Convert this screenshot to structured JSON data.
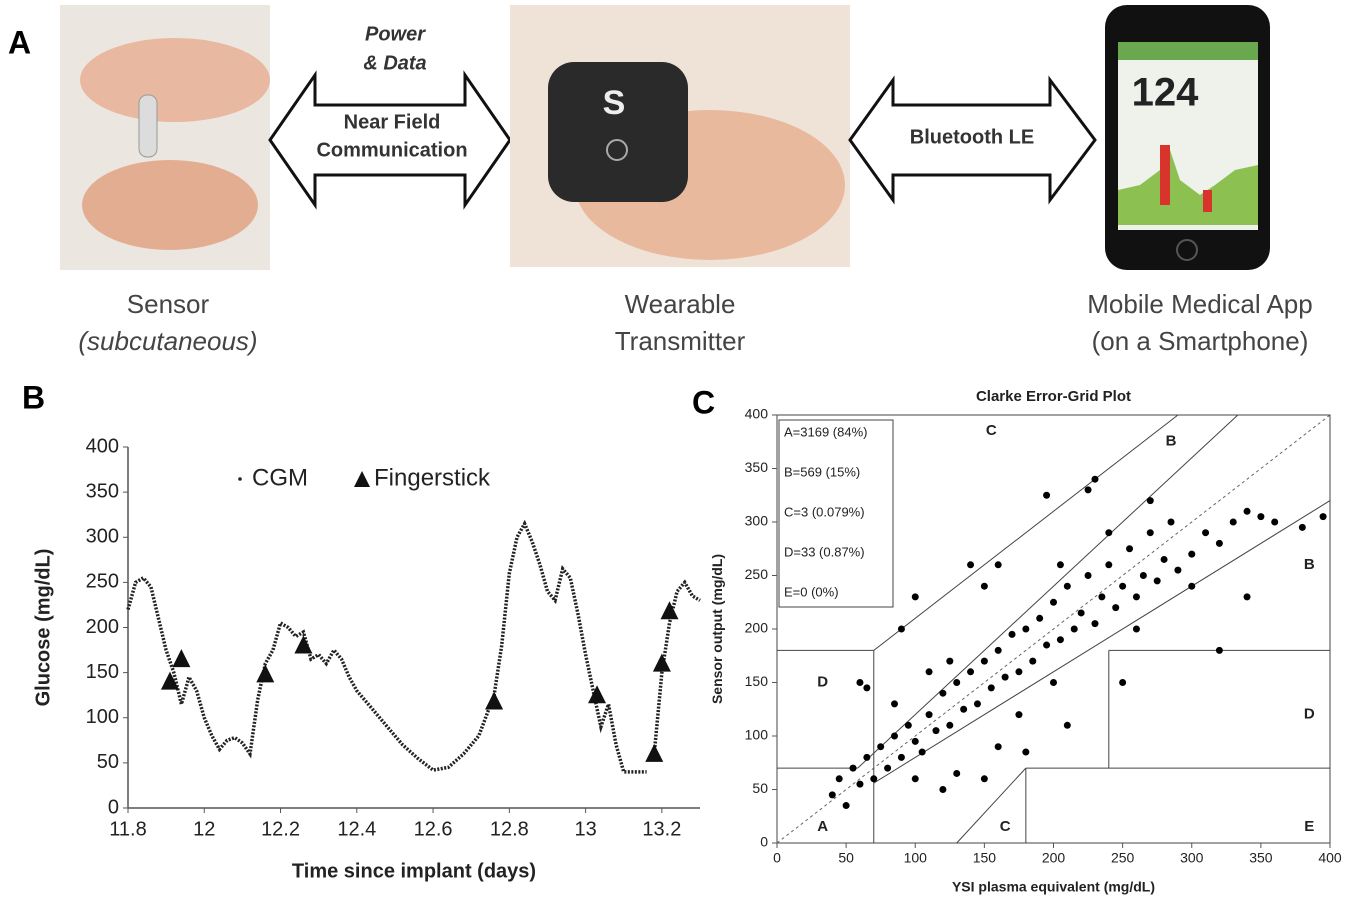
{
  "panel_labels": [
    "A",
    "B",
    "C"
  ],
  "panel_a": {
    "nfc_above": [
      "Power",
      "& Data"
    ],
    "nfc_arrow": [
      "Near Field",
      "Communication"
    ],
    "ble_arrow": "Bluetooth LE",
    "captions": [
      [
        "Sensor",
        "(subcutaneous)"
      ],
      [
        "Wearable",
        "Transmitter"
      ],
      [
        "Mobile Medical App",
        "(on a Smartphone)"
      ]
    ],
    "phone_reading": "124",
    "transmitter_logo": "S"
  },
  "chart_data": [
    {
      "type": "line",
      "xlabel": "Time since implant (days)",
      "ylabel": "Glucose (mg/dL)",
      "xlim": [
        11.8,
        13.3
      ],
      "ylim": [
        0,
        400
      ],
      "xticks": [
        11.8,
        12,
        12.2,
        12.4,
        12.6,
        12.8,
        13,
        13.2
      ],
      "yticks": [
        0,
        50,
        100,
        150,
        200,
        250,
        300,
        350,
        400
      ],
      "series": [
        {
          "name": "CGM",
          "color": "#222222",
          "marker": "dot",
          "x": [
            11.8,
            11.82,
            11.84,
            11.86,
            11.88,
            11.9,
            11.92,
            11.94,
            11.96,
            11.98,
            12.0,
            12.02,
            12.04,
            12.06,
            12.08,
            12.1,
            12.12,
            12.14,
            12.16,
            12.18,
            12.2,
            12.22,
            12.24,
            12.26,
            12.28,
            12.3,
            12.32,
            12.34,
            12.36,
            12.38,
            12.4,
            12.44,
            12.48,
            12.52,
            12.56,
            12.6,
            12.64,
            12.68,
            12.72,
            12.76,
            12.78,
            12.8,
            12.82,
            12.84,
            12.86,
            12.88,
            12.9,
            12.92,
            12.94,
            12.96,
            12.98,
            13.0,
            13.02,
            13.04,
            13.06,
            13.08,
            13.1,
            13.14,
            13.16,
            13.17,
            13.18,
            13.2,
            13.22,
            13.24,
            13.26,
            13.28,
            13.3
          ],
          "values": [
            220,
            250,
            255,
            245,
            210,
            175,
            150,
            115,
            145,
            130,
            100,
            80,
            65,
            75,
            78,
            72,
            60,
            120,
            160,
            175,
            205,
            200,
            190,
            195,
            165,
            170,
            160,
            175,
            165,
            145,
            130,
            110,
            90,
            70,
            55,
            42,
            45,
            60,
            80,
            125,
            180,
            260,
            300,
            315,
            295,
            270,
            240,
            230,
            265,
            255,
            215,
            170,
            130,
            90,
            115,
            70,
            40,
            40,
            40,
            null,
            60,
            150,
            205,
            240,
            250,
            235,
            230
          ]
        },
        {
          "name": "Fingerstick",
          "color": "#111111",
          "marker": "triangle",
          "x": [
            11.91,
            11.94,
            12.16,
            12.26,
            12.76,
            13.03,
            13.18,
            13.2,
            13.22
          ],
          "values": [
            140,
            165,
            148,
            180,
            118,
            125,
            60,
            160,
            218
          ]
        }
      ]
    },
    {
      "type": "scatter",
      "title": "Clarke Error-Grid Plot",
      "xlabel": "YSI plasma equivalent (mg/dL)",
      "ylabel": "Sensor output (mg/dL)",
      "xlim": [
        0,
        400
      ],
      "ylim": [
        0,
        400
      ],
      "xticks": [
        0,
        50,
        100,
        150,
        200,
        250,
        300,
        350,
        400
      ],
      "yticks": [
        0,
        50,
        100,
        150,
        200,
        250,
        300,
        350,
        400
      ],
      "color": "#000000",
      "stats": [
        "A=3169 (84%)",
        "B=569 (15%)",
        "C=3 (0.079%)",
        "D=33 (0.87%)",
        "E=0 (0%)"
      ],
      "zone_labels": [
        {
          "label": "A",
          "x": 33,
          "y": 15
        },
        {
          "label": "B",
          "x": 285,
          "y": 375
        },
        {
          "label": "B",
          "x": 385,
          "y": 260
        },
        {
          "label": "C",
          "x": 155,
          "y": 385
        },
        {
          "label": "C",
          "x": 165,
          "y": 15
        },
        {
          "label": "D",
          "x": 33,
          "y": 150
        },
        {
          "label": "D",
          "x": 385,
          "y": 120
        },
        {
          "label": "E",
          "x": 385,
          "y": 15
        }
      ],
      "zone_lines": [
        [
          0,
          70,
          58.33,
          70
        ],
        [
          58.33,
          70,
          333.33,
          400
        ],
        [
          70,
          56,
          400,
          320
        ],
        [
          70,
          180,
          290,
          400
        ],
        [
          70,
          0,
          70,
          180
        ],
        [
          0,
          180,
          70,
          180
        ],
        [
          130,
          0,
          180,
          70
        ],
        [
          180,
          70,
          400,
          70
        ],
        [
          180,
          0,
          180,
          70
        ],
        [
          240,
          70,
          240,
          180
        ],
        [
          240,
          180,
          400,
          180
        ]
      ],
      "reference_line": [
        0,
        0,
        400,
        400
      ],
      "x": [
        40,
        45,
        50,
        55,
        60,
        65,
        70,
        75,
        80,
        85,
        90,
        95,
        100,
        105,
        110,
        115,
        120,
        125,
        130,
        135,
        140,
        145,
        150,
        155,
        160,
        165,
        170,
        175,
        180,
        185,
        190,
        195,
        200,
        205,
        210,
        215,
        220,
        225,
        230,
        235,
        240,
        245,
        250,
        255,
        260,
        265,
        270,
        275,
        280,
        285,
        290,
        300,
        310,
        320,
        330,
        340,
        350,
        360,
        380,
        395,
        60,
        65,
        90,
        100,
        150,
        140,
        160,
        195,
        225,
        230,
        150,
        180,
        210,
        250,
        320,
        120,
        130,
        160,
        100,
        200,
        175,
        260,
        300,
        340,
        125,
        110,
        85,
        270,
        240,
        205
      ],
      "values": [
        45,
        60,
        35,
        70,
        55,
        80,
        60,
        90,
        70,
        100,
        80,
        110,
        95,
        85,
        120,
        105,
        140,
        110,
        150,
        125,
        160,
        130,
        170,
        145,
        180,
        155,
        195,
        160,
        200,
        170,
        210,
        185,
        225,
        190,
        240,
        200,
        215,
        250,
        205,
        230,
        260,
        220,
        240,
        275,
        230,
        250,
        290,
        245,
        265,
        300,
        255,
        270,
        290,
        280,
        300,
        310,
        305,
        300,
        295,
        305,
        150,
        145,
        200,
        230,
        240,
        260,
        260,
        325,
        330,
        340,
        60,
        85,
        110,
        150,
        180,
        50,
        65,
        90,
        60,
        150,
        120,
        200,
        240,
        230,
        170,
        160,
        130,
        320,
        290,
        260
      ]
    }
  ]
}
